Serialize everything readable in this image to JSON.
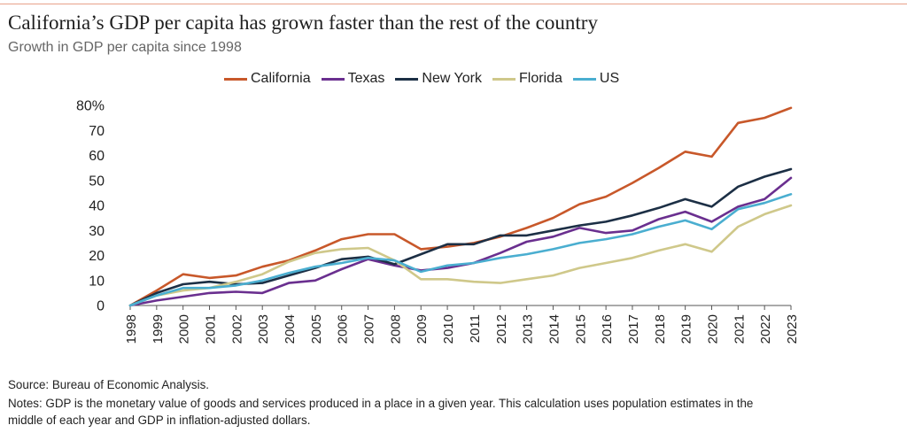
{
  "header": {
    "title": "California’s GDP per capita has grown faster than the rest of the country",
    "subtitle": "Growth in GDP per capita since 1998"
  },
  "footer": {
    "source": "Source: Bureau of Economic Analysis.",
    "notes_line1": "Notes: GDP is the monetary value of goods and services produced in a place in a given year. This calculation uses population estimates in the",
    "notes_line2": "middle of each year and GDP in inflation-adjusted dollars."
  },
  "chart_data": {
    "type": "line",
    "title": "California’s GDP per capita has grown faster than the rest of the country",
    "subtitle": "Growth in GDP per capita since 1998",
    "xlabel": "",
    "ylabel": "",
    "ylim": [
      0,
      80
    ],
    "y_ticks": [
      0,
      10,
      20,
      30,
      40,
      50,
      60,
      70,
      80
    ],
    "y_tick_labels": [
      "0",
      "10",
      "20",
      "30",
      "40",
      "50",
      "60",
      "70",
      "80%"
    ],
    "legend_position": "top",
    "grid": false,
    "categories": [
      "1998",
      "1999",
      "2000",
      "2001",
      "2002",
      "2003",
      "2004",
      "2005",
      "2006",
      "2007",
      "2008",
      "2009",
      "2010",
      "2011",
      "2012",
      "2013",
      "2014",
      "2015",
      "2016",
      "2017",
      "2018",
      "2019",
      "2020",
      "2021",
      "2022",
      "2023"
    ],
    "series": [
      {
        "name": "California",
        "color": "#c8582a",
        "values": [
          0,
          6,
          12.5,
          11,
          12,
          15.5,
          18,
          22,
          26.5,
          28.5,
          28.5,
          22.5,
          23.5,
          25,
          27.5,
          31,
          35,
          40.5,
          43.5,
          49,
          55,
          61.5,
          59.5,
          73,
          75,
          79
        ]
      },
      {
        "name": "Texas",
        "color": "#6a2f8f",
        "values": [
          0,
          2,
          3.5,
          5,
          5.5,
          5,
          9,
          10,
          14.5,
          18.5,
          16,
          14,
          15,
          17,
          21,
          25.5,
          27.5,
          31,
          29,
          30,
          34.5,
          37.5,
          33.5,
          39.5,
          42.5,
          51
        ]
      },
      {
        "name": "New York",
        "color": "#1c2f45",
        "values": [
          0,
          5,
          8.5,
          9.5,
          8.5,
          9,
          12,
          15,
          18.5,
          19.5,
          16.5,
          20.5,
          24.5,
          24.5,
          28,
          28,
          30,
          32,
          33.5,
          36,
          39,
          42.5,
          39.5,
          47.5,
          51.5,
          54.5
        ]
      },
      {
        "name": "Florida",
        "color": "#cfc88a",
        "values": [
          0,
          4,
          6,
          7,
          9.5,
          12.5,
          17.5,
          21,
          22.5,
          23,
          18,
          10.5,
          10.5,
          9.5,
          9,
          10.5,
          12,
          15,
          17,
          19,
          22,
          24.5,
          21.5,
          31.5,
          36.5,
          40
        ]
      },
      {
        "name": "US",
        "color": "#4aaed0",
        "values": [
          0,
          4,
          7,
          7,
          8,
          10,
          13,
          15.5,
          17,
          19,
          18,
          13.5,
          16,
          17,
          19,
          20.5,
          22.5,
          25,
          26.5,
          28.5,
          31.5,
          34,
          30.5,
          38.5,
          41,
          44.5
        ]
      }
    ]
  }
}
